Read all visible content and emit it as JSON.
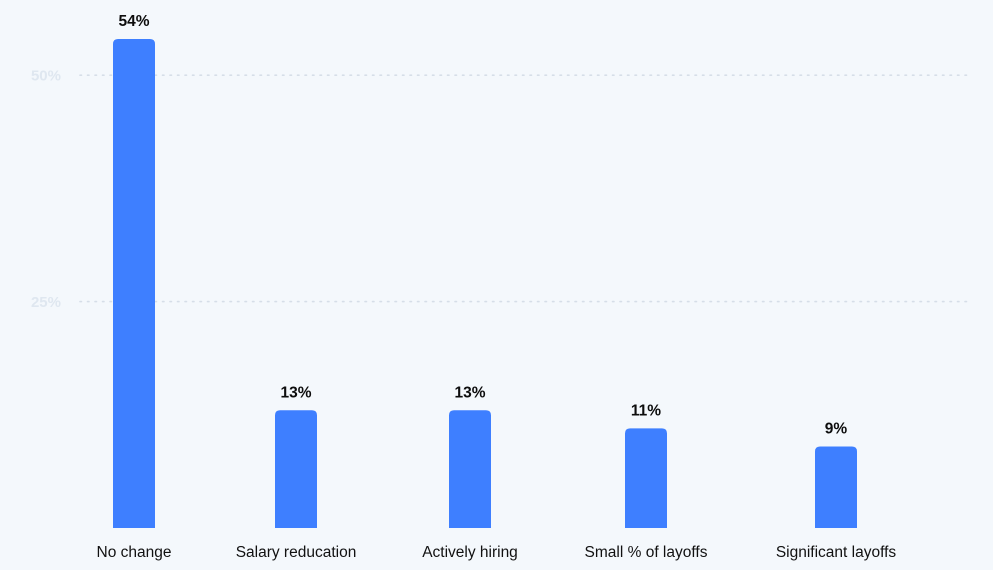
{
  "chart_data": {
    "type": "bar",
    "categories": [
      "No change",
      "Salary reducation",
      "Actively hiring",
      "Small % of layoffs",
      "Significant layoffs"
    ],
    "values": [
      54,
      13,
      13,
      11,
      9
    ],
    "value_labels": [
      "54%",
      "13%",
      "13%",
      "11%",
      "9%"
    ],
    "y_ticks": [
      25,
      50
    ],
    "y_tick_labels": [
      "25%",
      "50%"
    ],
    "ylim": [
      0,
      54
    ],
    "title": "",
    "xlabel": "",
    "ylabel": "",
    "grid": true,
    "colors": {
      "bar": "#3e7fff",
      "background": "#f4f8fc",
      "grid": "#d6dee8",
      "tick_text": "#dfe7f0",
      "value_text": "#0d0d0d",
      "category_text": "#111111"
    }
  }
}
